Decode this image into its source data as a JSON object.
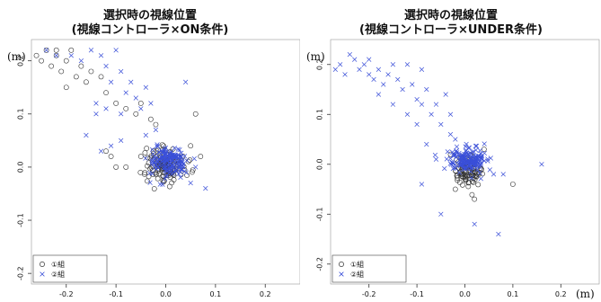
{
  "charts": [
    {
      "title_line1": "選択時の視線位置",
      "title_line2": "(視線コントローラ×ON条件)",
      "y_unit": "(m)",
      "x_unit": ""
    },
    {
      "title_line1": "選択時の視線位置",
      "title_line2": "(視線コントローラ×UNDER条件)",
      "y_unit": "(m)",
      "x_unit": "(m)"
    }
  ],
  "colors": {
    "group1": "#333333",
    "group2": "#3a4fd8"
  },
  "chart_data": [
    {
      "type": "scatter",
      "title": "選択時の視線位置 (視線コントローラ×ON条件)",
      "xlim": [
        -0.27,
        0.27
      ],
      "ylim": [
        -0.22,
        0.24
      ],
      "xticks": [
        -0.2,
        -0.1,
        0.0,
        0.1,
        0.2
      ],
      "yticks": [
        -0.2,
        -0.1,
        0.0,
        0.1,
        0.2
      ],
      "xtick_labels": [
        "-0.2",
        "-0.1",
        "0.0",
        "0.1",
        "0.2"
      ],
      "ytick_labels": [
        "-0.2",
        "-0.1",
        "0.0",
        "0.1",
        "0.2"
      ],
      "legend": {
        "position": "bottom-left",
        "entries": [
          "①組",
          "②組"
        ]
      },
      "series": [
        {
          "name": "①組",
          "marker": "circle",
          "scattered": [
            [
              -0.26,
              0.21
            ],
            [
              -0.25,
              0.2
            ],
            [
              -0.24,
              0.22
            ],
            [
              -0.23,
              0.19
            ],
            [
              -0.22,
              0.21
            ],
            [
              -0.2,
              0.2
            ],
            [
              -0.19,
              0.22
            ],
            [
              -0.21,
              0.18
            ],
            [
              -0.18,
              0.17
            ],
            [
              -0.17,
              0.19
            ],
            [
              -0.16,
              0.16
            ],
            [
              -0.15,
              0.18
            ],
            [
              -0.2,
              0.15
            ],
            [
              -0.12,
              0.14
            ],
            [
              -0.1,
              0.12
            ],
            [
              -0.08,
              0.11
            ],
            [
              -0.06,
              0.1
            ],
            [
              -0.05,
              0.12
            ],
            [
              -0.03,
              0.09
            ],
            [
              -0.02,
              0.08
            ],
            [
              0.06,
              0.1
            ],
            [
              -0.12,
              0.03
            ],
            [
              -0.1,
              0.0
            ],
            [
              -0.05,
              0.02
            ],
            [
              0.05,
              0.04
            ],
            [
              0.07,
              0.02
            ],
            [
              -0.11,
              0.02
            ],
            [
              -0.08,
              0.0
            ],
            [
              -0.22,
              0.22
            ],
            [
              -0.13,
              0.17
            ]
          ],
          "clusters": [
            {
              "center": [
                0.0,
                0.005
              ],
              "spread": [
                0.035,
                0.03
              ],
              "count": 140,
              "dense": true
            }
          ]
        },
        {
          "name": "②組",
          "marker": "x",
          "scattered": [
            [
              -0.24,
              0.22
            ],
            [
              -0.22,
              0.21
            ],
            [
              -0.19,
              0.21
            ],
            [
              -0.17,
              0.2
            ],
            [
              -0.15,
              0.22
            ],
            [
              -0.13,
              0.21
            ],
            [
              -0.12,
              0.19
            ],
            [
              -0.1,
              0.22
            ],
            [
              -0.09,
              0.18
            ],
            [
              -0.08,
              0.14
            ],
            [
              -0.07,
              0.16
            ],
            [
              -0.06,
              0.13
            ],
            [
              -0.05,
              0.11
            ],
            [
              -0.04,
              0.15
            ],
            [
              -0.03,
              0.12
            ],
            [
              -0.11,
              0.16
            ],
            [
              -0.14,
              0.12
            ],
            [
              -0.12,
              0.11
            ],
            [
              0.04,
              0.16
            ],
            [
              -0.02,
              0.07
            ],
            [
              -0.04,
              0.06
            ],
            [
              -0.09,
              0.05
            ],
            [
              -0.11,
              0.04
            ],
            [
              -0.13,
              0.03
            ],
            [
              0.05,
              -0.03
            ],
            [
              0.08,
              -0.04
            ],
            [
              -0.14,
              0.1
            ],
            [
              -0.09,
              0.1
            ],
            [
              0.06,
              0.0
            ],
            [
              -0.16,
              0.06
            ]
          ],
          "clusters": [
            {
              "center": [
                0.005,
                0.01
              ],
              "spread": [
                0.035,
                0.025
              ],
              "count": 170,
              "dense": true
            }
          ]
        }
      ]
    },
    {
      "type": "scatter",
      "title": "選択時の視線位置 (視線コントローラ×UNDER条件)",
      "xlim": [
        -0.28,
        0.28
      ],
      "ylim": [
        -0.24,
        0.25
      ],
      "xticks": [
        -0.2,
        -0.1,
        0.0,
        0.1,
        0.2
      ],
      "yticks": [
        -0.2,
        -0.1,
        0.0,
        0.1,
        0.2
      ],
      "xtick_labels": [
        "-0.2",
        "-0.1",
        "0.0",
        "0.1",
        "0.2"
      ],
      "ytick_labels": [
        "-0.2",
        "-0.1",
        "0.0",
        "0.1",
        "0.2"
      ],
      "legend": {
        "position": "bottom-left",
        "entries": [
          "①組",
          "②組"
        ]
      },
      "series": [
        {
          "name": "①組",
          "marker": "circle",
          "scattered": [
            [
              0.1,
              -0.04
            ],
            [
              0.02,
              -0.07
            ],
            [
              -0.02,
              -0.05
            ],
            [
              -0.03,
              0.02
            ],
            [
              0.04,
              0.03
            ]
          ],
          "clusters": [
            {
              "center": [
                0.005,
                -0.015
              ],
              "spread": [
                0.025,
                0.025
              ],
              "count": 90,
              "dense": true
            }
          ]
        },
        {
          "name": "②組",
          "marker": "x",
          "scattered": [
            [
              -0.27,
              0.19
            ],
            [
              -0.26,
              0.2
            ],
            [
              -0.25,
              0.18
            ],
            [
              -0.24,
              0.22
            ],
            [
              -0.23,
              0.21
            ],
            [
              -0.22,
              0.19
            ],
            [
              -0.21,
              0.2
            ],
            [
              -0.2,
              0.18
            ],
            [
              -0.19,
              0.17
            ],
            [
              -0.18,
              0.19
            ],
            [
              -0.17,
              0.16
            ],
            [
              -0.16,
              0.18
            ],
            [
              -0.15,
              0.2
            ],
            [
              -0.14,
              0.17
            ],
            [
              -0.13,
              0.15
            ],
            [
              -0.12,
              0.2
            ],
            [
              -0.11,
              0.16
            ],
            [
              -0.1,
              0.13
            ],
            [
              -0.09,
              0.12
            ],
            [
              -0.08,
              0.15
            ],
            [
              -0.07,
              0.1
            ],
            [
              -0.06,
              0.12
            ],
            [
              -0.05,
              0.08
            ],
            [
              -0.04,
              0.14
            ],
            [
              -0.03,
              0.1
            ],
            [
              -0.02,
              0.05
            ],
            [
              -0.15,
              0.12
            ],
            [
              -0.12,
              0.1
            ],
            [
              -0.1,
              0.08
            ],
            [
              -0.09,
              0.19
            ],
            [
              0.16,
              0.0
            ],
            [
              0.06,
              -0.02
            ],
            [
              0.02,
              -0.12
            ],
            [
              -0.05,
              -0.1
            ],
            [
              0.07,
              -0.14
            ],
            [
              -0.09,
              -0.04
            ],
            [
              -0.08,
              0.04
            ],
            [
              -0.06,
              0.01
            ],
            [
              0.08,
              -0.02
            ],
            [
              -0.03,
              0.06
            ],
            [
              -0.2,
              0.21
            ],
            [
              -0.18,
              0.14
            ]
          ],
          "clusters": [
            {
              "center": [
                0.005,
                0.01
              ],
              "spread": [
                0.035,
                0.022
              ],
              "count": 180,
              "dense": true
            }
          ]
        }
      ]
    }
  ]
}
